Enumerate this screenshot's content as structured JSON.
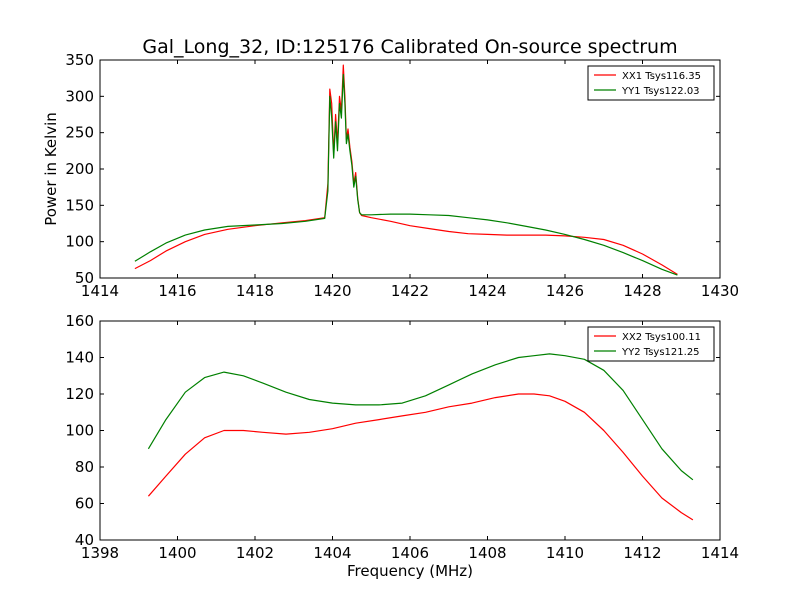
{
  "figure_title": "Gal_Long_32, ID:125176 Calibrated On-source spectrum",
  "chart_data": [
    {
      "type": "line",
      "title": "Gal_Long_32, ID:125176 Calibrated On-source spectrum",
      "xlabel": "",
      "ylabel": "Power in Kelvin",
      "xlim": [
        1414,
        1430
      ],
      "ylim": [
        50,
        350
      ],
      "xticks": [
        1414,
        1416,
        1418,
        1420,
        1422,
        1424,
        1426,
        1428,
        1430
      ],
      "yticks": [
        50,
        100,
        150,
        200,
        250,
        300,
        350
      ],
      "grid": false,
      "legend": "top-right",
      "series": [
        {
          "name": "XX1 Tsys116.35",
          "color": "#ff0000",
          "x": [
            1414.9,
            1415.3,
            1415.7,
            1416.2,
            1416.7,
            1417.3,
            1418.0,
            1418.7,
            1419.3,
            1419.8,
            1419.88,
            1419.93,
            1419.98,
            1420.03,
            1420.08,
            1420.13,
            1420.18,
            1420.23,
            1420.28,
            1420.32,
            1420.36,
            1420.4,
            1420.45,
            1420.5,
            1420.55,
            1420.6,
            1420.65,
            1420.7,
            1420.75,
            1421.0,
            1421.5,
            1422.0,
            1422.5,
            1423.0,
            1423.5,
            1424.0,
            1424.5,
            1425.0,
            1425.5,
            1426.0,
            1426.5,
            1427.0,
            1427.5,
            1428.0,
            1428.5,
            1428.9
          ],
          "values": [
            63,
            74,
            87,
            100,
            110,
            117,
            122,
            126,
            129,
            133,
            180,
            310,
            290,
            220,
            275,
            235,
            300,
            280,
            343,
            300,
            240,
            255,
            230,
            210,
            180,
            195,
            160,
            140,
            136,
            133,
            128,
            122,
            118,
            114,
            111,
            110,
            109,
            109,
            109,
            108,
            106,
            103,
            95,
            83,
            68,
            55
          ]
        },
        {
          "name": "YY1 Tsys122.03",
          "color": "#008000",
          "x": [
            1414.9,
            1415.3,
            1415.7,
            1416.2,
            1416.7,
            1417.3,
            1418.0,
            1418.7,
            1419.3,
            1419.8,
            1419.88,
            1419.93,
            1419.98,
            1420.03,
            1420.08,
            1420.13,
            1420.18,
            1420.23,
            1420.28,
            1420.32,
            1420.36,
            1420.4,
            1420.45,
            1420.5,
            1420.55,
            1420.6,
            1420.65,
            1420.7,
            1420.75,
            1421.0,
            1421.5,
            1422.0,
            1422.5,
            1423.0,
            1423.5,
            1424.0,
            1424.5,
            1425.0,
            1425.5,
            1426.0,
            1426.5,
            1427.0,
            1427.5,
            1428.0,
            1428.5,
            1428.9
          ],
          "values": [
            73,
            86,
            98,
            109,
            116,
            121,
            123,
            125,
            128,
            132,
            170,
            300,
            270,
            215,
            265,
            225,
            290,
            270,
            330,
            290,
            235,
            248,
            225,
            205,
            175,
            190,
            158,
            140,
            137,
            137,
            138,
            138,
            137,
            136,
            133,
            130,
            126,
            121,
            116,
            110,
            103,
            95,
            85,
            74,
            62,
            54
          ]
        }
      ]
    },
    {
      "type": "line",
      "title": "",
      "xlabel": "Frequency (MHz)",
      "ylabel": "",
      "xlim": [
        1398,
        1414
      ],
      "ylim": [
        40,
        160
      ],
      "xticks": [
        1398,
        1400,
        1402,
        1404,
        1406,
        1408,
        1410,
        1412,
        1414
      ],
      "yticks": [
        40,
        60,
        80,
        100,
        120,
        140,
        160
      ],
      "grid": false,
      "legend": "top-right",
      "series": [
        {
          "name": "XX2 Tsys100.11",
          "color": "#ff0000",
          "x": [
            1399.25,
            1399.7,
            1400.2,
            1400.7,
            1401.2,
            1401.7,
            1402.2,
            1402.8,
            1403.4,
            1404.0,
            1404.6,
            1405.2,
            1405.8,
            1406.4,
            1407.0,
            1407.6,
            1408.2,
            1408.8,
            1409.2,
            1409.6,
            1410.0,
            1410.5,
            1411.0,
            1411.5,
            1412.0,
            1412.5,
            1413.0,
            1413.3
          ],
          "values": [
            64,
            75,
            87,
            96,
            100,
            100,
            99,
            98,
            99,
            101,
            104,
            106,
            108,
            110,
            113,
            115,
            118,
            120,
            120,
            119,
            116,
            110,
            100,
            88,
            75,
            63,
            55,
            51
          ]
        },
        {
          "name": "YY2 Tsys121.25",
          "color": "#008000",
          "x": [
            1399.25,
            1399.7,
            1400.2,
            1400.7,
            1401.2,
            1401.7,
            1402.2,
            1402.8,
            1403.4,
            1404.0,
            1404.6,
            1405.2,
            1405.8,
            1406.4,
            1407.0,
            1407.6,
            1408.2,
            1408.8,
            1409.2,
            1409.6,
            1410.0,
            1410.5,
            1411.0,
            1411.5,
            1412.0,
            1412.5,
            1413.0,
            1413.3
          ],
          "values": [
            90,
            106,
            121,
            129,
            132,
            130,
            126,
            121,
            117,
            115,
            114,
            114,
            115,
            119,
            125,
            131,
            136,
            140,
            141,
            142,
            141,
            139,
            133,
            122,
            106,
            90,
            78,
            73
          ]
        }
      ]
    }
  ]
}
